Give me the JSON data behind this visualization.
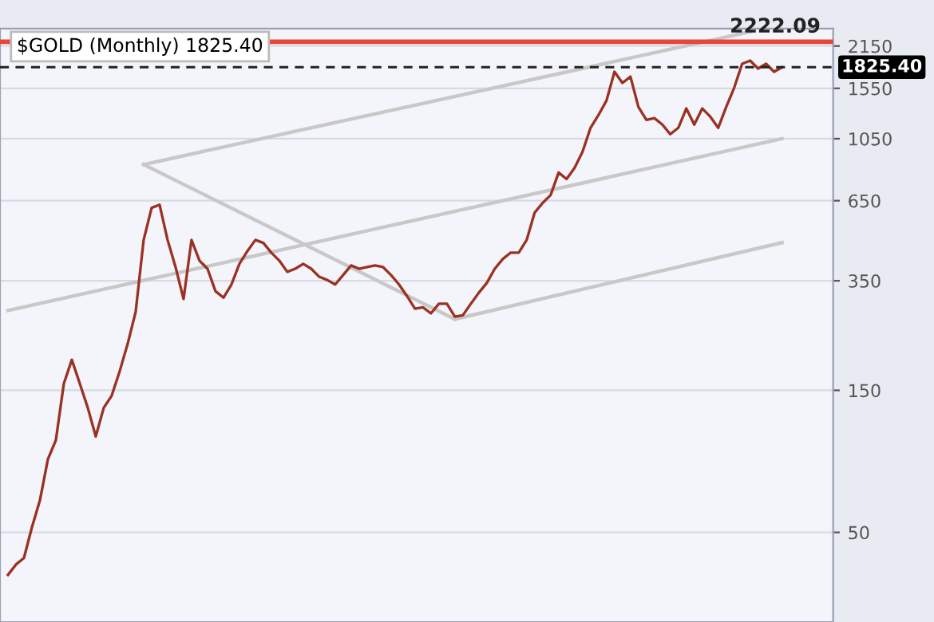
{
  "chart_data": {
    "type": "line",
    "title": "$GOLD (Monthly) 1825.40",
    "log": "y",
    "ylim": [
      25,
      2460
    ],
    "yticks": [
      50,
      150,
      350,
      650,
      1050,
      1550,
      2150
    ],
    "grid": "y",
    "tick_labels": "y",
    "legend": false,
    "categories": [
      null,
      null,
      null,
      null,
      null,
      null,
      null,
      null,
      null,
      null,
      null,
      null,
      null,
      null,
      null,
      null,
      null,
      null,
      null,
      null,
      null,
      null,
      null,
      null,
      null,
      null,
      null,
      null,
      null,
      null,
      null,
      null,
      null,
      null,
      null,
      null,
      null,
      null,
      null,
      null,
      null,
      null,
      null,
      null,
      null,
      null,
      null,
      null,
      null,
      null,
      null,
      null,
      null,
      null,
      null,
      null,
      null,
      null,
      null,
      null,
      null,
      null,
      null,
      null,
      null,
      null,
      null,
      null,
      null,
      null,
      null,
      null,
      null,
      null,
      null,
      null,
      null,
      null,
      null,
      null,
      null,
      null,
      null,
      null,
      null,
      null,
      null,
      null,
      null,
      null,
      null,
      null,
      null,
      null,
      null,
      null,
      null,
      null
    ],
    "ref_lines": [
      {
        "axis": "y",
        "value": 2222.09,
        "label": "2222.09",
        "color": "#e8463a",
        "line_style": "solid"
      },
      {
        "axis": "y",
        "value": 1825.4,
        "label": "1825.40",
        "color": "#222222",
        "line_style": "dashed"
      }
    ],
    "series": [
      {
        "color": "#9a3224",
        "values": [
          36,
          39,
          41,
          52,
          64,
          88,
          102,
          158,
          190,
          158,
          131,
          105,
          131,
          144,
          174,
          215,
          275,
          480,
          615,
          630,
          480,
          389,
          304,
          480,
          409,
          384,
          323,
          307,
          340,
          399,
          440,
          480,
          469,
          435,
          409,
          375,
          384,
          399,
          384,
          361,
          352,
          340,
          366,
          394,
          384,
          389,
          394,
          389,
          366,
          340,
          311,
          282,
          285,
          272,
          293,
          293,
          265,
          268,
          293,
          319,
          344,
          384,
          414,
          435,
          435,
          480,
          593,
          639,
          679,
          808,
          769,
          838,
          949,
          1142,
          1261,
          1410,
          1762,
          1616,
          1697,
          1342,
          1215,
          1231,
          1171,
          1087,
          1142,
          1326,
          1171,
          1326,
          1246,
          1142,
          1342,
          1557,
          1874,
          1921,
          1806,
          1874,
          1762,
          1825.4
        ]
      },
      {
        "color": "#c8c8c8",
        "values": [
          null,
          null,
          null,
          null,
          null,
          null,
          null,
          null,
          null,
          null,
          null,
          null,
          null,
          null,
          null,
          null,
          null,
          860,
          null,
          null,
          null,
          null,
          null,
          null,
          null,
          null,
          null,
          null,
          null,
          null,
          null,
          null,
          null,
          null,
          null,
          null,
          null,
          null,
          null,
          null,
          null,
          null,
          null,
          null,
          null,
          null,
          null,
          null,
          null,
          null,
          null,
          null,
          null,
          null,
          null,
          null,
          null,
          null,
          null,
          null,
          null,
          null,
          null,
          null,
          null,
          null,
          null,
          null,
          null,
          null,
          null,
          null,
          null,
          null,
          null,
          null,
          null,
          null,
          null,
          null,
          null,
          null,
          null,
          null,
          null,
          null,
          null,
          null,
          null,
          null,
          null,
          null,
          null,
          2400,
          null,
          null,
          null,
          null
        ]
      },
      {
        "color": "#c8c8c8",
        "values": [
          null,
          null,
          null,
          null,
          null,
          null,
          null,
          null,
          null,
          null,
          null,
          null,
          null,
          null,
          null,
          null,
          null,
          860,
          null,
          null,
          null,
          null,
          null,
          null,
          null,
          null,
          null,
          null,
          null,
          null,
          null,
          null,
          null,
          null,
          null,
          null,
          null,
          null,
          null,
          null,
          null,
          null,
          null,
          null,
          null,
          null,
          null,
          null,
          null,
          null,
          null,
          null,
          null,
          null,
          null,
          null,
          260,
          null,
          null,
          null,
          null,
          null,
          null,
          null,
          null,
          null,
          null,
          null,
          null,
          null,
          null,
          null,
          null,
          null,
          null,
          null,
          null,
          null,
          null,
          null,
          null,
          null,
          null,
          null,
          null,
          null,
          null,
          null,
          null,
          null,
          null,
          null,
          null,
          null,
          null,
          null,
          null,
          null
        ]
      },
      {
        "color": "#c8c8c8",
        "values": [
          278,
          null,
          null,
          null,
          null,
          null,
          null,
          null,
          null,
          null,
          null,
          null,
          null,
          null,
          null,
          null,
          null,
          null,
          null,
          null,
          null,
          null,
          null,
          null,
          null,
          null,
          null,
          null,
          null,
          null,
          null,
          null,
          null,
          null,
          null,
          null,
          null,
          null,
          null,
          null,
          null,
          null,
          null,
          null,
          null,
          null,
          null,
          null,
          null,
          null,
          null,
          null,
          null,
          null,
          null,
          null,
          null,
          null,
          null,
          null,
          null,
          null,
          null,
          null,
          null,
          null,
          null,
          null,
          null,
          null,
          null,
          null,
          null,
          null,
          null,
          null,
          null,
          null,
          null,
          null,
          null,
          null,
          null,
          null,
          null,
          null,
          null,
          null,
          null,
          null,
          null,
          null,
          null,
          null,
          null,
          null,
          null,
          1050
        ]
      },
      {
        "color": "#c8c8c8",
        "values": [
          null,
          null,
          null,
          null,
          null,
          null,
          null,
          null,
          null,
          null,
          null,
          null,
          null,
          null,
          null,
          null,
          null,
          null,
          null,
          null,
          null,
          null,
          null,
          null,
          null,
          null,
          null,
          null,
          null,
          null,
          null,
          null,
          null,
          null,
          null,
          null,
          null,
          null,
          null,
          null,
          null,
          null,
          null,
          null,
          null,
          null,
          null,
          null,
          null,
          null,
          null,
          null,
          null,
          null,
          null,
          null,
          260,
          null,
          null,
          null,
          null,
          null,
          null,
          null,
          null,
          null,
          null,
          null,
          null,
          null,
          null,
          null,
          null,
          null,
          null,
          null,
          null,
          null,
          null,
          null,
          null,
          null,
          null,
          null,
          null,
          null,
          null,
          null,
          null,
          null,
          null,
          null,
          null,
          null,
          null,
          null,
          null,
          470
        ]
      }
    ]
  }
}
